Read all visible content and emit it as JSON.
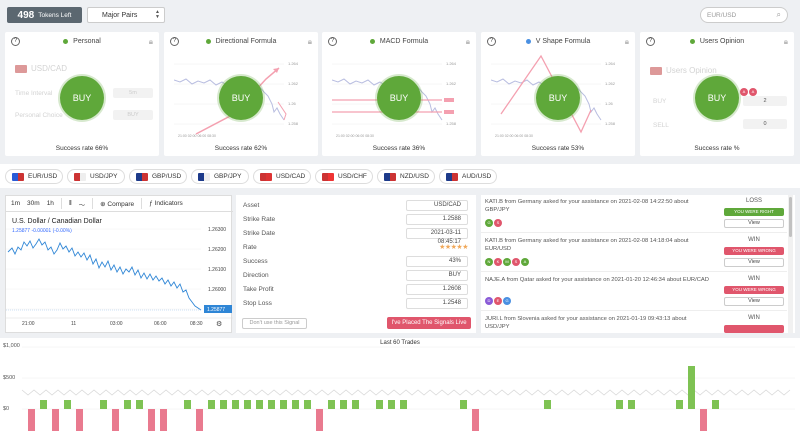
{
  "topbar": {
    "tokens_count": "498",
    "tokens_label": "Tokens Left",
    "pairs_select": "Major Pairs",
    "search_placeholder": "EUR/USD"
  },
  "colors": {
    "accent_green": "#5fa83a",
    "accent_pink": "#e0566c",
    "dark": "#5b6770",
    "star": "#f0a85a"
  },
  "cards": [
    {
      "title": "Personal",
      "buy": "BUY",
      "rate": "Success rate 66%",
      "pair": "USD/CAD",
      "row1_label": "Time Interval",
      "row1_value": "5m",
      "row2_label": "Personal Choice",
      "row2_value": "BUY"
    },
    {
      "title": "Directional Formula",
      "buy": "BUY",
      "rate": "Success rate 62%"
    },
    {
      "title": "MACD Formula",
      "buy": "BUY",
      "rate": "Success rate 36%"
    },
    {
      "title": "V Shape Formula",
      "buy": "BUY",
      "rate": "Success rate 53%"
    },
    {
      "title": "Users Opinion",
      "buy": "BUY",
      "rate": "Success rate %",
      "faded_title": "Users Opinion",
      "buy_label": "BUY",
      "buy_count": "2",
      "sell_label": "SELL",
      "sell_count": "0"
    }
  ],
  "pairs": [
    "EUR/USD",
    "USD/JPY",
    "GBP/USD",
    "GBP/JPY",
    "USD/CAD",
    "USD/CHF",
    "NZD/USD",
    "AUD/USD"
  ],
  "chart_toolbar": {
    "tf1": "1m",
    "tf2": "30m",
    "tf3": "1h",
    "compare": "Compare",
    "indicators": "Indicators"
  },
  "chart_main": {
    "symbol": "U.S. Dollar / Canadian Dollar",
    "quote": "1.25877 -0.00001 (-0.00%)",
    "y_ticks": [
      "1.26300",
      "1.26200",
      "1.26100",
      "1.26000",
      "1.25900"
    ],
    "x_ticks": [
      "21:00",
      "11",
      "03:00",
      "06:00",
      "08:30"
    ],
    "last_price": "1.25877"
  },
  "signal": {
    "rows": [
      {
        "label": "Asset",
        "value": "USD/CAD"
      },
      {
        "label": "Strike Rate",
        "value": "1.2588"
      },
      {
        "label": "Strike Date",
        "value": "2021-03-11 08:45:17"
      },
      {
        "label": "Rate",
        "value": "★★★★★"
      },
      {
        "label": "Success",
        "value": "43%"
      },
      {
        "label": "Direction",
        "value": "BUY"
      },
      {
        "label": "Take Profit",
        "value": "1.2608"
      },
      {
        "label": "Stop Loss",
        "value": "1.2548"
      }
    ],
    "btn_dont": "Don't use this Signal",
    "btn_placed": "I've Placed The Signals Live"
  },
  "feed": [
    {
      "text": "KATI.B from Germany asked for your assistance on 2021-02-08 14:22:50 about GBP/JPY",
      "result": "LOSS",
      "tag": "YOU WERE RIGHT",
      "tag_color": "#5fa83a",
      "view": "View"
    },
    {
      "text": "KATI.B from Germany asked for your assistance on 2021-02-08 14:18:04 about EUR/USD",
      "result": "WIN",
      "tag": "YOU WERE WRONG",
      "tag_color": "#e0566c",
      "view": "View"
    },
    {
      "text": "NAJE.A from Qatar asked for your assistance on 2021-01-20 12:46:34 about EUR/CAD",
      "result": "WIN",
      "tag": "YOU WERE WRONG",
      "tag_color": "#e0566c",
      "view": "View"
    },
    {
      "text": "JURI.L from Slovenia asked for your assistance on 2021-01-19 09:43:13 about USD/JPY",
      "result": "WIN",
      "tag": "",
      "tag_color": "#e0566c",
      "view": "View"
    }
  ],
  "trades": {
    "title": "Last 60 Trades",
    "y_ticks": [
      "$1,000",
      "$500",
      "$0"
    ]
  }
}
